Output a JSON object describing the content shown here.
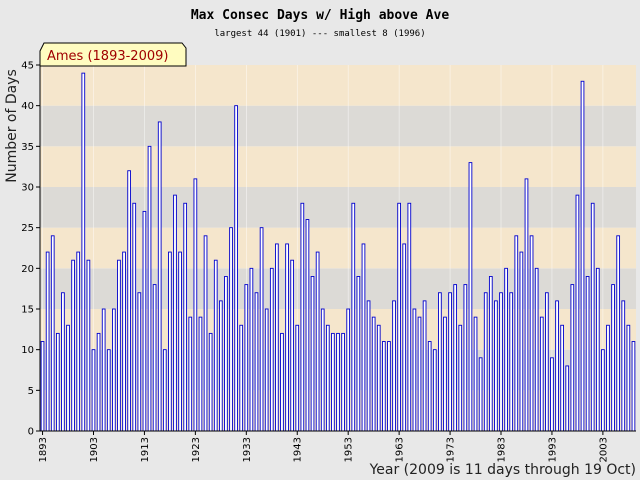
{
  "chart_data": {
    "type": "bar",
    "title": "Max Consec Days w/ High above Ave",
    "subtitle": "largest 44 (1901) --- smallest 8 (1996)",
    "xlabel": "Year (2009 is 11 days through 19 Oct)",
    "ylabel": "Number of Days",
    "legend": "Ames (1893-2009)",
    "legend_position": "top-left",
    "ylim": [
      0,
      45
    ],
    "yticks": [
      0,
      5,
      10,
      15,
      20,
      25,
      30,
      35,
      40,
      45
    ],
    "xticks": [
      1893,
      1903,
      1913,
      1923,
      1933,
      1943,
      1953,
      1963,
      1973,
      1983,
      1993,
      2003
    ],
    "x_start": 1893,
    "x_end": 2009,
    "bar_color": "#0000cc",
    "band_colors": [
      "#f5e6cc",
      "#dcdad6"
    ],
    "values": [
      11,
      22,
      24,
      12,
      17,
      13,
      21,
      22,
      44,
      21,
      10,
      12,
      15,
      10,
      15,
      21,
      22,
      32,
      28,
      17,
      27,
      35,
      18,
      38,
      10,
      22,
      29,
      22,
      28,
      14,
      31,
      14,
      24,
      12,
      21,
      16,
      19,
      25,
      40,
      13,
      18,
      20,
      17,
      25,
      15,
      20,
      23,
      12,
      23,
      21,
      13,
      28,
      26,
      19,
      22,
      15,
      13,
      12,
      12,
      12,
      15,
      28,
      19,
      23,
      16,
      14,
      13,
      11,
      11,
      16,
      28,
      23,
      28,
      15,
      14,
      16,
      11,
      10,
      17,
      14,
      17,
      18,
      13,
      18,
      33,
      14,
      9,
      17,
      19,
      16,
      17,
      20,
      17,
      24,
      22,
      31,
      24,
      20,
      14,
      17,
      9,
      16,
      13,
      8,
      18,
      29,
      43,
      19,
      28,
      20,
      10,
      13,
      18,
      24,
      16,
      13,
      11
    ]
  }
}
